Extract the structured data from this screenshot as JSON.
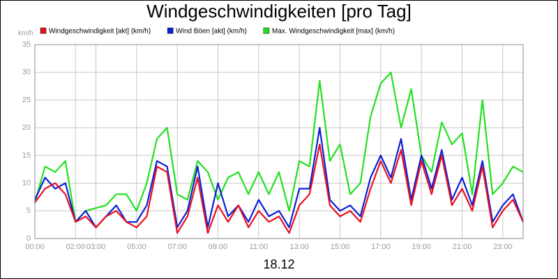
{
  "chart_data": {
    "type": "line",
    "title": "Windgeschwindigkeiten [pro Tag]",
    "y_unit": "km/h",
    "x_label": "18.12",
    "x": [
      0,
      0.5,
      1,
      1.5,
      2,
      2.5,
      3,
      3.5,
      4,
      4.5,
      5,
      5.5,
      6,
      6.5,
      7,
      7.5,
      8,
      8.5,
      9,
      9.5,
      10,
      10.5,
      11,
      11.5,
      12,
      12.5,
      13,
      13.5,
      14,
      14.5,
      15,
      15.5,
      16,
      16.5,
      17,
      17.5,
      18,
      18.5,
      19,
      19.5,
      20,
      20.5,
      21,
      21.5,
      22,
      22.5,
      23,
      23.5,
      24
    ],
    "series": [
      {
        "name": "Windgeschwindigkeit [akt] (km/h)",
        "color": "#e8101e",
        "values": [
          6.5,
          9,
          10,
          8,
          3,
          4,
          2,
          4,
          5,
          3,
          2,
          4,
          13,
          12,
          1,
          4,
          11,
          1,
          6,
          3,
          6,
          2,
          5,
          3,
          4,
          1,
          6,
          8,
          17,
          6,
          4,
          5,
          3,
          9,
          14,
          10,
          16,
          6,
          14,
          8,
          15,
          6,
          9,
          5,
          13,
          2,
          5,
          7,
          3
        ]
      },
      {
        "name": "Wind Böen [akt] (km/h)",
        "color": "#0a1ed8",
        "values": [
          7,
          11,
          9,
          10,
          3,
          5,
          2,
          4,
          6,
          3,
          3,
          6,
          14,
          13,
          2,
          5,
          13,
          2,
          10,
          4,
          6,
          3,
          7,
          4,
          5,
          2,
          9,
          9,
          20,
          7,
          5,
          6,
          4,
          11,
          15,
          11,
          18,
          7,
          15,
          9,
          16,
          7,
          11,
          6,
          14,
          3,
          6,
          8,
          3
        ]
      },
      {
        "name": "Max. Windgeschwindigkeit [max] (km/h)",
        "color": "#22e01c",
        "values": [
          6.5,
          13,
          12,
          14,
          3,
          5,
          5.5,
          6,
          8,
          8,
          5,
          10,
          18,
          20,
          8,
          7,
          14,
          12,
          7,
          11,
          12,
          8,
          12,
          8,
          12,
          5,
          14,
          13,
          28.5,
          14,
          17,
          8,
          10,
          22,
          28,
          30,
          20,
          27,
          15,
          12,
          21,
          17,
          19,
          8,
          25,
          8,
          10,
          13,
          12
        ]
      }
    ],
    "xlim": [
      0,
      24
    ],
    "xticks": [
      {
        "value": 0,
        "label": "00:00"
      },
      {
        "value": 2,
        "label": "02:00"
      },
      {
        "value": 3,
        "label": "03:00"
      },
      {
        "value": 5,
        "label": "05:00"
      },
      {
        "value": 7,
        "label": "07:00"
      },
      {
        "value": 9,
        "label": "09:00"
      },
      {
        "value": 11,
        "label": "11:00"
      },
      {
        "value": 13,
        "label": "13:00"
      },
      {
        "value": 15,
        "label": "15:00"
      },
      {
        "value": 17,
        "label": "17:00"
      },
      {
        "value": 19,
        "label": "19:00"
      },
      {
        "value": 21,
        "label": "21:00"
      },
      {
        "value": 23,
        "label": "23:00"
      }
    ],
    "ylim": [
      0,
      35
    ],
    "yticks": [
      0,
      5,
      10,
      15,
      20,
      25,
      30,
      35
    ],
    "grid": true
  }
}
